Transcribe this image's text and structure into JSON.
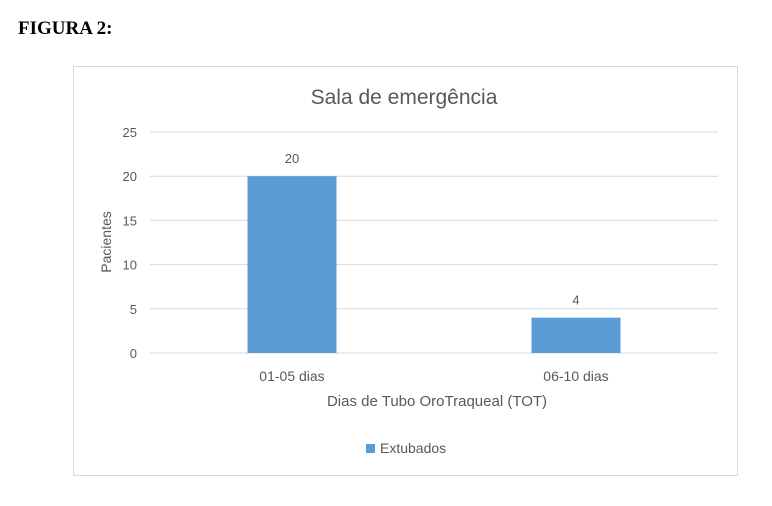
{
  "figure_label": "FIGURA 2:",
  "chart_data": {
    "type": "bar",
    "title": "Sala de emergência",
    "xlabel": "Dias de Tubo OroTraqueal (TOT)",
    "ylabel": "Pacientes",
    "categories": [
      "01-05 dias",
      "06-10 dias"
    ],
    "series": [
      {
        "name": "Extubados",
        "values": [
          20,
          4
        ]
      }
    ],
    "ylim": [
      0,
      25
    ],
    "yticks": [
      0,
      5,
      10,
      15,
      20,
      25
    ],
    "grid": true,
    "legend_position": "bottom",
    "bar_color": "#5b9bd5",
    "data_labels": true
  }
}
